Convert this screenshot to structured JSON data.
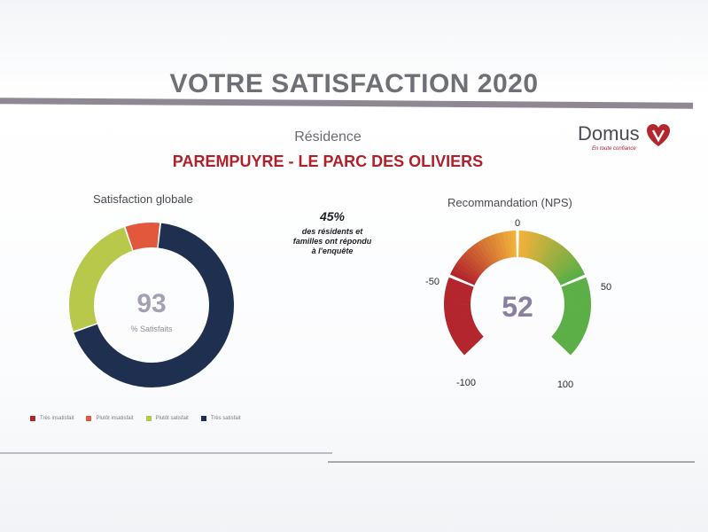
{
  "header": {
    "title": "VOTRE SATISFACTION 2020",
    "residence_label": "Résidence",
    "residence_name": "PAREMPUYRE - LE PARC DES OLIVIERS"
  },
  "logo": {
    "name": "DomusVi",
    "text": "Domus",
    "tagline": "En toute confiance",
    "icon": "heart-v-logo"
  },
  "response": {
    "percent": "45%",
    "text_lines": [
      "des résidents et",
      "familles ont répondu",
      "à l'enquête"
    ]
  },
  "colors": {
    "tres_insatisfait": "#b3262d",
    "plutot_insatisfait": "#e2583c",
    "plutot_satisfait": "#b7c84a",
    "tres_satisfait": "#1f2f4f",
    "nps_low": "#b3262d",
    "nps_mid": "#f0b13a",
    "nps_high": "#5cae46"
  },
  "chart_data": [
    {
      "type": "pie",
      "title": "Satisfaction globale",
      "center_value": "93",
      "center_label": "% Satisfaits",
      "categories": [
        "Très insatisfait",
        "Plutôt insatisfait",
        "Plutôt satisfait",
        "Très satisfait"
      ],
      "values": [
        0,
        7,
        25,
        68
      ],
      "legend_position": "bottom"
    },
    {
      "type": "gauge",
      "title": "Recommandation (NPS)",
      "value": 52,
      "range": [
        -100,
        100
      ],
      "segments": [
        {
          "from": -100,
          "to": -50
        },
        {
          "from": -50,
          "to": 0
        },
        {
          "from": 0,
          "to": 50
        },
        {
          "from": 50,
          "to": 100
        }
      ],
      "tick_labels": [
        "-100",
        "-50",
        "0",
        "50",
        "100"
      ]
    }
  ]
}
